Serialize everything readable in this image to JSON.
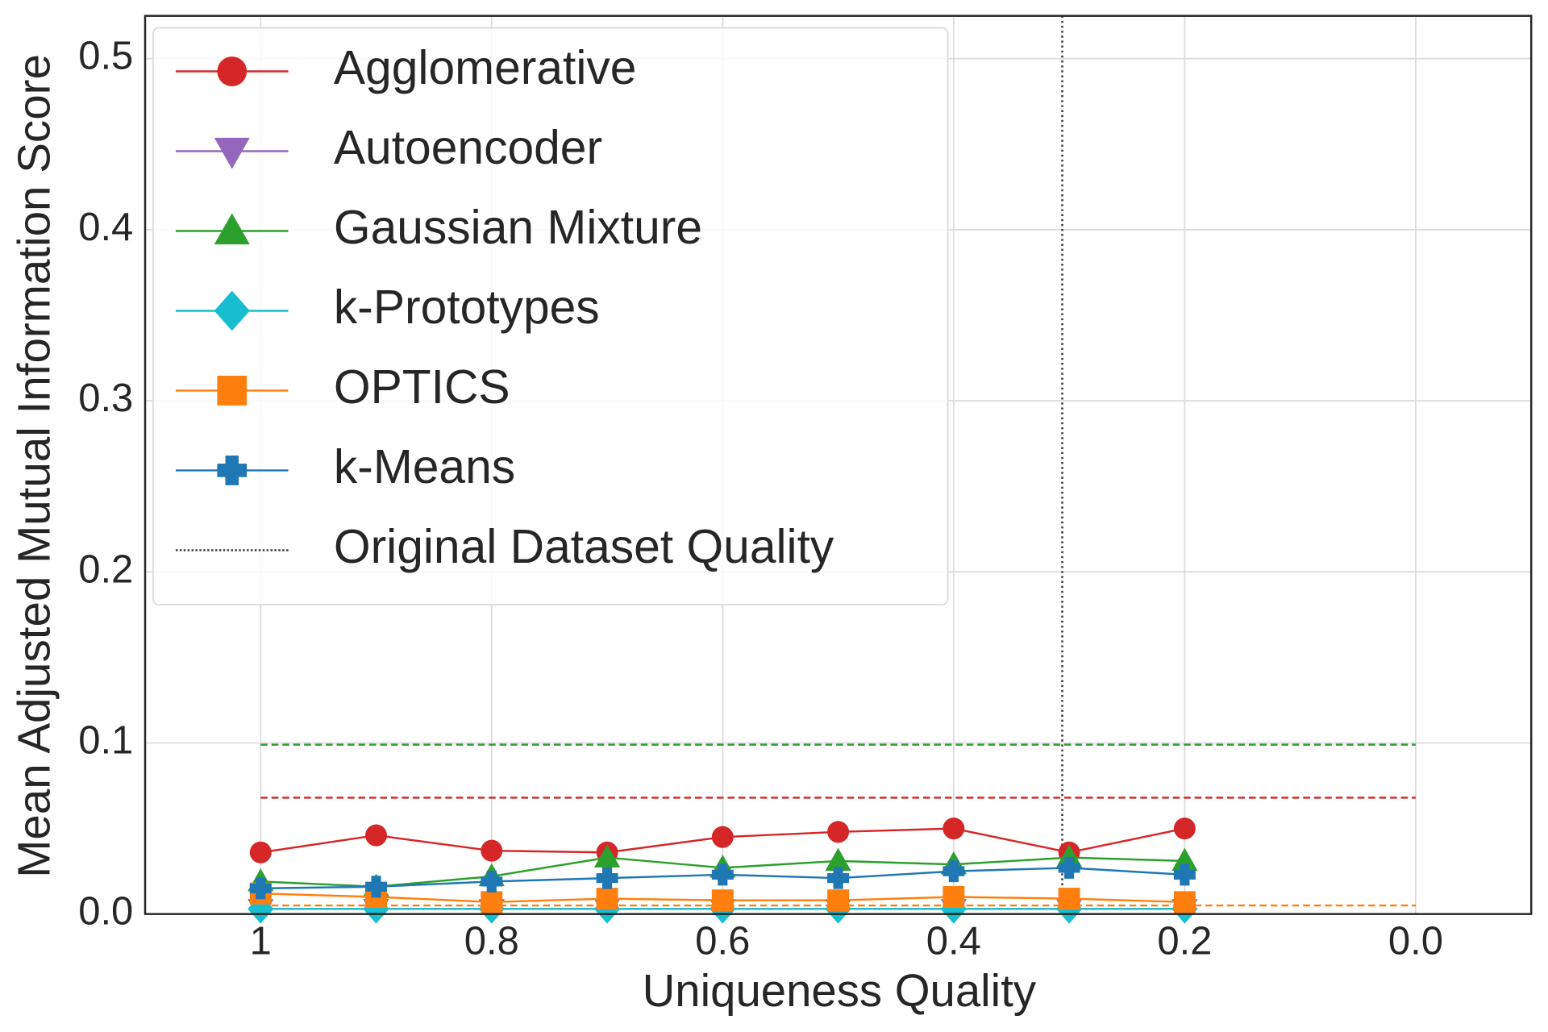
{
  "chart_data": {
    "type": "line",
    "x_label": "Uniqueness Quality",
    "y_label": "Mean Adjusted Mutual Information Score",
    "x": [
      1.0,
      0.9,
      0.8,
      0.7,
      0.6,
      0.5,
      0.4,
      0.3,
      0.2
    ],
    "xlim": [
      1.1,
      -0.1
    ],
    "xticks": [
      1.0,
      0.8,
      0.6,
      0.4,
      0.2,
      {
        "value": 0,
        "label": "0.0"
      }
    ],
    "ylim": [
      0,
      0.525
    ],
    "yticks": [
      {
        "value": 0,
        "label": "0.0"
      },
      0.1,
      0.2,
      0.3,
      0.4,
      0.5
    ],
    "grid": true,
    "legend": "upper left",
    "series": [
      {
        "name": "Agglomerative",
        "color": "#d62728",
        "marker": "circle",
        "values": [
          0.036,
          0.046,
          0.037,
          0.036,
          0.045,
          0.048,
          0.05,
          0.036,
          0.05
        ]
      },
      {
        "name": "Autoencoder",
        "color": "#9467bd",
        "marker": "triangle-down",
        "values": [
          0.003,
          0.003,
          0.003,
          0.003,
          0.003,
          0.003,
          0.003,
          0.003,
          0.003
        ]
      },
      {
        "name": "Gaussian Mixture",
        "color": "#2ca02c",
        "marker": "triangle-up",
        "values": [
          0.019,
          0.016,
          0.022,
          0.033,
          0.027,
          0.031,
          0.029,
          0.033,
          0.031
        ]
      },
      {
        "name": "k-Prototypes",
        "color": "#17becf",
        "marker": "diamond",
        "values": [
          0.003,
          0.003,
          0.003,
          0.003,
          0.003,
          0.003,
          0.003,
          0.003,
          0.003
        ]
      },
      {
        "name": "OPTICS",
        "color": "#ff7f0e",
        "marker": "square",
        "values": [
          0.012,
          0.01,
          0.007,
          0.009,
          0.008,
          0.008,
          0.01,
          0.009,
          0.007
        ]
      },
      {
        "name": "k-Means",
        "color": "#1f77b4",
        "marker": "plus",
        "values": [
          0.015,
          0.016,
          0.019,
          0.021,
          0.023,
          0.021,
          0.025,
          0.027,
          0.023
        ]
      }
    ],
    "baselines": [
      {
        "color": "#2ca02c",
        "value": 0.099,
        "x": [
          1.0,
          0.0
        ]
      },
      {
        "color": "#d62728",
        "value": 0.068,
        "x": [
          1.0,
          0.0
        ]
      },
      {
        "color": "#ff7f0e",
        "value": 0.005,
        "x": [
          1.0,
          0.0
        ]
      }
    ],
    "reference_line": {
      "name": "Original Dataset Quality",
      "color": "#333333",
      "x": 0.306
    }
  }
}
